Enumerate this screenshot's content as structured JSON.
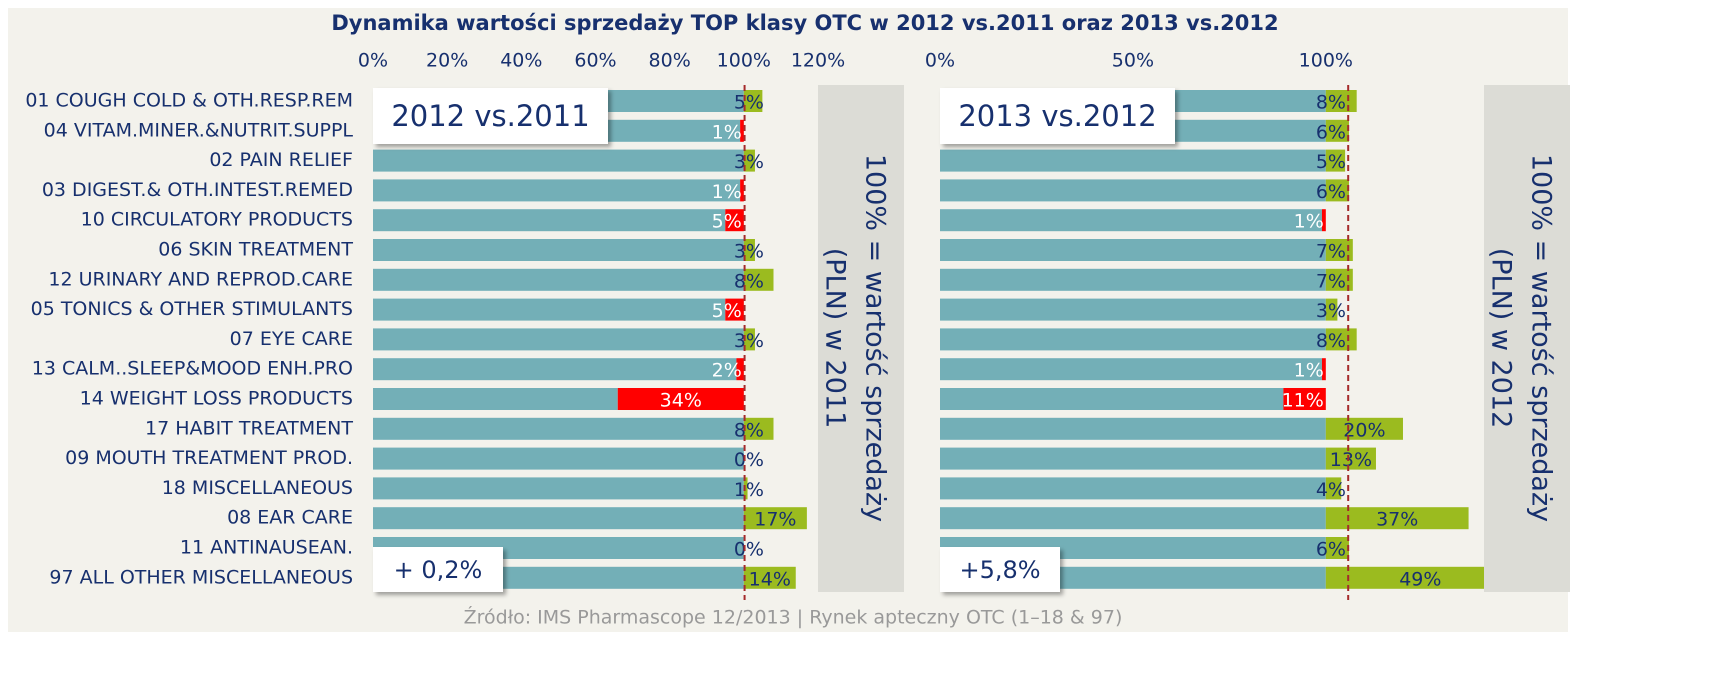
{
  "title": "Dynamika wartości sprzedaży TOP klasy OTC w 2012 vs.2011 oraz 2013 vs.2012",
  "source": "Źródło: IMS Pharmascope 12/2013 | Rynek apteczny OTC (1–18 & 97)",
  "chart_data": [
    {
      "type": "bar",
      "label": "2012 vs.2011",
      "categories": [
        "01 COUGH COLD & OTH.RESP.REM",
        "04 VITAM.MINER.&NUTRIT.SUPPL",
        "02 PAIN RELIEF",
        "03 DIGEST.& OTH.INTEST.REMED",
        "10 CIRCULATORY PRODUCTS",
        "06 SKIN TREATMENT",
        "12 URINARY AND REPROD.CARE",
        "05 TONICS & OTHER STIMULANTS",
        "07 EYE CARE",
        "13 CALM..SLEEP&MOOD ENH.PRO",
        "14 WEIGHT LOSS PRODUCTS",
        "17 HABIT TREATMENT",
        "09 MOUTH TREATMENT PROD.",
        "18 MISCELLANEOUS",
        "08 EAR CARE",
        "11 ANTINAUSEAN.",
        "97 ALL OTHER MISCELLANEOUS"
      ],
      "values": [
        5,
        -1,
        3,
        -1,
        -5,
        3,
        8,
        -5,
        3,
        -2,
        -34,
        8,
        0,
        1,
        17,
        0,
        14
      ],
      "value_labels": [
        "5%",
        "1%",
        "3%",
        "1%",
        "5%",
        "3%",
        "8%",
        "5%",
        "3%",
        "2%",
        "34%",
        "8%",
        "0%",
        "1%",
        "17%",
        "0%",
        "14%"
      ],
      "baseline": 100,
      "xlim": [
        0,
        120
      ],
      "xticks": [
        {
          "value": 0,
          "label": "0%"
        },
        {
          "value": 20,
          "label": "20%"
        },
        {
          "value": 40,
          "label": "40%"
        },
        {
          "value": 60,
          "label": "60%"
        },
        {
          "value": 80,
          "label": "80%"
        },
        {
          "value": 100,
          "label": "100%"
        },
        {
          "value": 120,
          "label": "120%"
        }
      ],
      "reference": {
        "value": 0.2,
        "label": "+ 0,2%"
      },
      "axis_note": [
        "100% = wartość sprzedaży",
        "(PLN) w 2011"
      ],
      "colors": {
        "base": "#73afb7",
        "up": "#9bbb1f",
        "down": "#ff0000"
      }
    },
    {
      "type": "bar",
      "label": "2013 vs.2012",
      "values": [
        8,
        6,
        5,
        6,
        -1,
        7,
        7,
        3,
        8,
        -1,
        -11,
        20,
        13,
        4,
        37,
        6,
        49
      ],
      "value_labels": [
        "8%",
        "6%",
        "5%",
        "6%",
        "1%",
        "7%",
        "7%",
        "3%",
        "8%",
        "1%",
        "11%",
        "20%",
        "13%",
        "4%",
        "37%",
        "6%",
        "49%"
      ],
      "baseline": 100,
      "xlim": [
        0,
        141
      ],
      "xticks": [
        {
          "value": 0,
          "label": "0%"
        },
        {
          "value": 50,
          "label": "50%"
        },
        {
          "value": 100,
          "label": "100%"
        }
      ],
      "reference": {
        "value": 5.8,
        "label": "+5,8%"
      },
      "axis_note": [
        "100% = wartość sprzedaży",
        "(PLN) w 2012"
      ],
      "colors": {
        "base": "#73afb7",
        "up": "#9bbb1f",
        "down": "#ff0000"
      }
    }
  ]
}
